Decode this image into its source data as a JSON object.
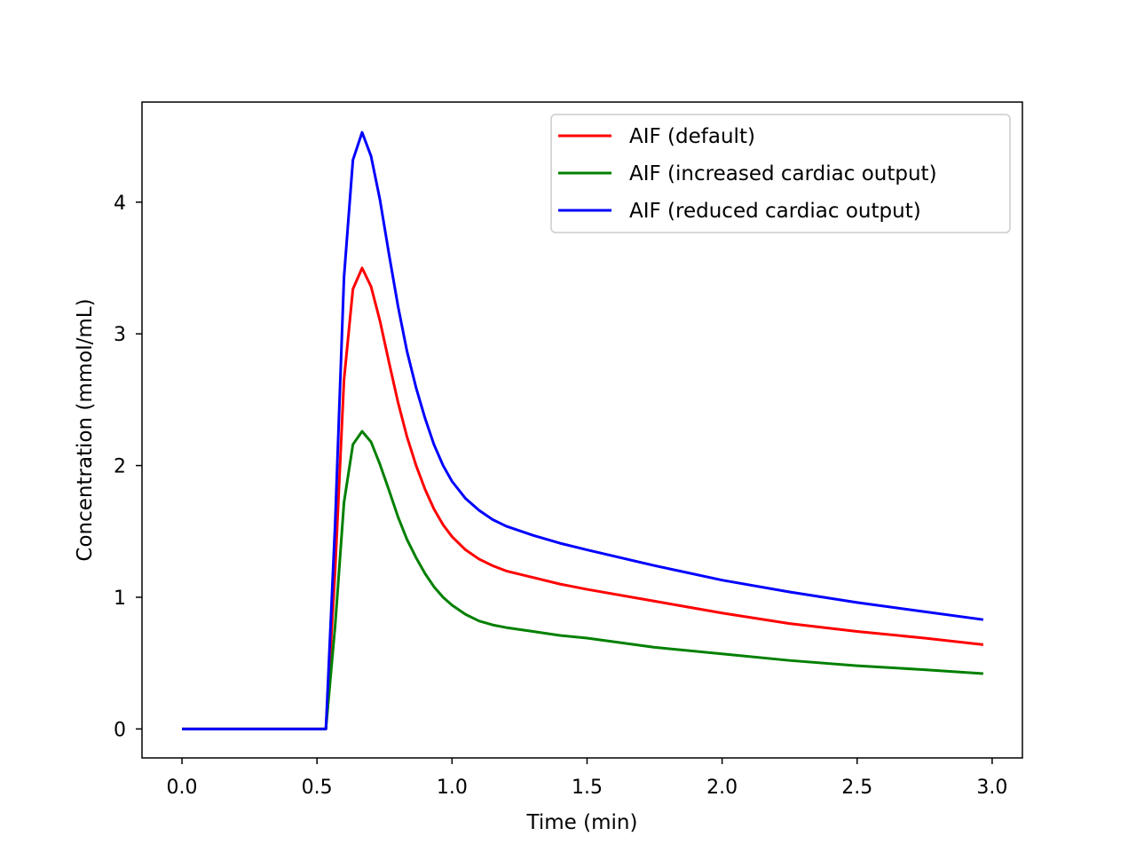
{
  "chart_data": {
    "type": "line",
    "xlabel": "Time (min)",
    "ylabel": "Concentration (mmol/mL)",
    "xlim": [
      -0.148,
      3.112
    ],
    "ylim": [
      -0.22,
      4.76
    ],
    "xticks": [
      0.0,
      0.5,
      1.0,
      1.5,
      2.0,
      2.5,
      3.0
    ],
    "xtick_labels": [
      "0.0",
      "0.5",
      "1.0",
      "1.5",
      "2.0",
      "2.5",
      "3.0"
    ],
    "yticks": [
      0,
      1,
      2,
      3,
      4
    ],
    "ytick_labels": [
      "0",
      "1",
      "2",
      "3",
      "4"
    ],
    "grid": false,
    "legend_position": "top-right",
    "x": [
      0.0,
      0.1,
      0.2,
      0.3,
      0.4,
      0.5,
      0.533,
      0.567,
      0.6,
      0.633,
      0.667,
      0.7,
      0.733,
      0.767,
      0.8,
      0.833,
      0.867,
      0.9,
      0.933,
      0.967,
      1.0,
      1.05,
      1.1,
      1.15,
      1.2,
      1.3,
      1.4,
      1.5,
      1.75,
      2.0,
      2.25,
      2.5,
      2.75,
      2.967
    ],
    "series": [
      {
        "name": "AIF (default)",
        "color": "#ff0000",
        "values": [
          0,
          0,
          0,
          0,
          0,
          0,
          0,
          1.2,
          2.65,
          3.34,
          3.5,
          3.36,
          3.1,
          2.78,
          2.48,
          2.22,
          2.0,
          1.82,
          1.67,
          1.55,
          1.46,
          1.36,
          1.29,
          1.24,
          1.2,
          1.15,
          1.1,
          1.06,
          0.97,
          0.88,
          0.8,
          0.74,
          0.69,
          0.64
        ]
      },
      {
        "name": "AIF (increased cardiac output)",
        "color": "#008000",
        "values": [
          0,
          0,
          0,
          0,
          0,
          0,
          0,
          0.78,
          1.72,
          2.16,
          2.26,
          2.18,
          2.01,
          1.81,
          1.61,
          1.44,
          1.3,
          1.18,
          1.08,
          1.0,
          0.94,
          0.87,
          0.82,
          0.79,
          0.77,
          0.74,
          0.71,
          0.69,
          0.62,
          0.57,
          0.52,
          0.48,
          0.45,
          0.42
        ]
      },
      {
        "name": "AIF (reduced cardiac output)",
        "color": "#0000ff",
        "values": [
          0,
          0,
          0,
          0,
          0,
          0,
          0,
          1.55,
          3.43,
          4.32,
          4.53,
          4.35,
          4.02,
          3.6,
          3.21,
          2.87,
          2.59,
          2.36,
          2.16,
          2.0,
          1.88,
          1.75,
          1.66,
          1.59,
          1.54,
          1.47,
          1.41,
          1.36,
          1.24,
          1.13,
          1.04,
          0.96,
          0.89,
          0.83
        ]
      }
    ]
  }
}
